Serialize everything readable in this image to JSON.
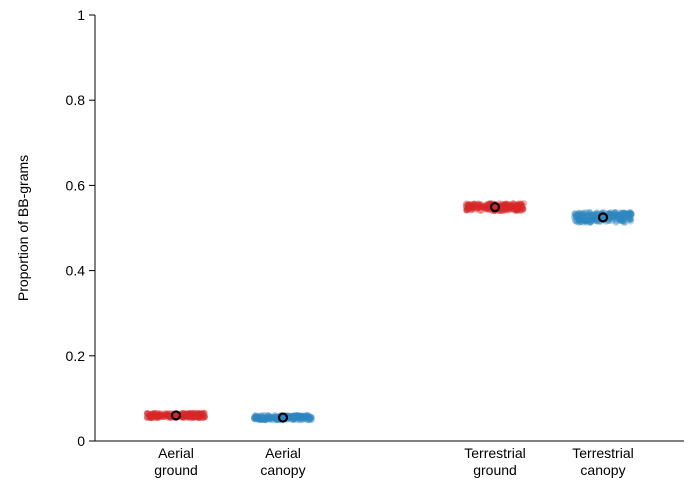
{
  "chart_data": {
    "type": "scatter",
    "ylabel": "Proportion of BB-grams",
    "ylim": [
      0,
      1
    ],
    "yticks": [
      "0",
      "0.2",
      "0.4",
      "0.6",
      "0.8",
      "1"
    ],
    "categories": [
      {
        "line1": "Aerial",
        "line2": "ground"
      },
      {
        "line1": "Aerial",
        "line2": "canopy"
      },
      {
        "line1": "Terrestrial",
        "line2": "ground"
      },
      {
        "line1": "Terrestrial",
        "line2": "canopy"
      }
    ],
    "points": [
      {
        "mean": 0.06,
        "spread": 0.012,
        "color": "#d62728"
      },
      {
        "mean": 0.055,
        "spread": 0.012,
        "color": "#2e86c1"
      },
      {
        "mean": 0.549,
        "spread": 0.018,
        "color": "#d62728"
      },
      {
        "mean": 0.525,
        "spread": 0.025,
        "color": "#2e86c1"
      }
    ],
    "marker_color": "#000000",
    "grid": false
  }
}
